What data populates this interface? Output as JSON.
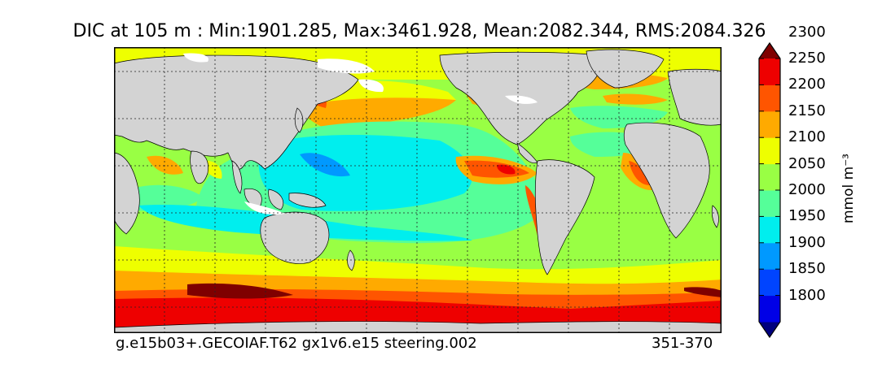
{
  "title": "DIC at 105 m : Min:1901.285, Max:3461.928, Mean:2082.344, RMS:2084.326",
  "footer": {
    "left": "g.e15b03+.GECOIAF.T62 gx1v6.e15 steering.002",
    "right": "351-370"
  },
  "colorbar": {
    "unit": "mmol m⁻³",
    "extend": "both",
    "ticks": [
      "1800",
      "1850",
      "1900",
      "1950",
      "2000",
      "2050",
      "2100",
      "2150",
      "2200",
      "2250",
      "2300"
    ],
    "colors": [
      "#00007f",
      "#0000e6",
      "#0044ff",
      "#0099ff",
      "#00eeee",
      "#55ff99",
      "#99ff44",
      "#eeff00",
      "#ffaa00",
      "#ff5500",
      "#ee0000",
      "#7f0000"
    ]
  },
  "map": {
    "land_color": "#d3d3d3",
    "ice_color": "#ffffff",
    "grid": "dotted"
  }
}
